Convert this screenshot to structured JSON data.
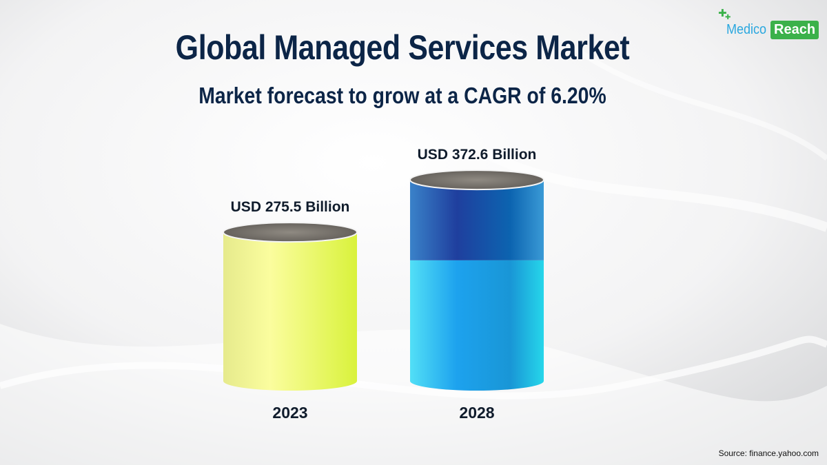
{
  "header": {
    "title": "Global Managed Services Market",
    "subtitle": "Market forecast to grow at a CAGR of 6.20%"
  },
  "logo": {
    "part1": "Medico",
    "part2": "Reach"
  },
  "source": "Source: finance.yahoo.com",
  "colors": {
    "title": "#0c2547",
    "bar_2023": "#eef27a",
    "bar_2028_top": "#1f5fb5",
    "bar_2028_bottom": "#25b8ea",
    "logo_blue": "#2aa7df",
    "logo_green": "#3bb14a"
  },
  "chart_data": {
    "type": "bar",
    "categories": [
      "2023",
      "2028"
    ],
    "values": [
      275.5,
      372.6
    ],
    "value_labels": [
      "USD 275.5 Billion",
      "USD 372.6 Billion"
    ],
    "style": "3d-cylinder",
    "title": "Global Managed Services Market",
    "subtitle": "Market forecast to grow at a CAGR of 6.20%",
    "xlabel": "",
    "ylabel": "",
    "grid": false,
    "legend": "none"
  }
}
